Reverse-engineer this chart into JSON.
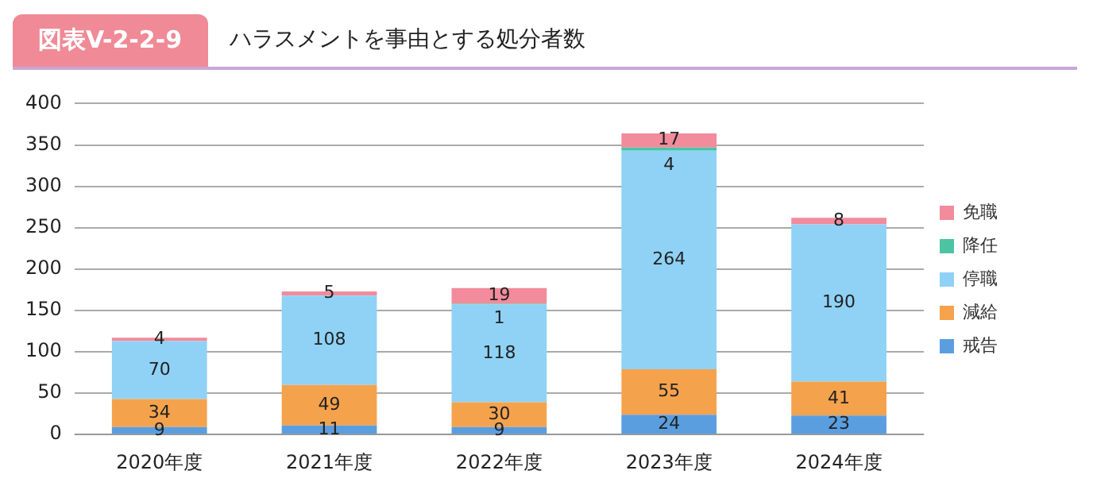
{
  "chart_data": {
    "type": "bar",
    "title": "図表V-2-2-9",
    "subtitle": "ハラスメントを事由とする処分者数",
    "categories": [
      "2020年度",
      "2021年度",
      "2022年度",
      "2023年度",
      "2024年度"
    ],
    "stacked": true,
    "series": [
      {
        "name": "戒告",
        "color": "#5b9ee0",
        "values": [
          9,
          11,
          9,
          24,
          23
        ],
        "value_labels": [
          "9",
          "11",
          "9",
          "24",
          "23"
        ]
      },
      {
        "name": "減給",
        "color": "#f5a24c",
        "values": [
          34,
          49,
          30,
          55,
          41
        ],
        "value_labels": [
          "34",
          "49",
          "30",
          "55",
          "41"
        ]
      },
      {
        "name": "停職",
        "color": "#8fd2f6",
        "values": [
          70,
          108,
          118,
          264,
          190
        ],
        "value_labels": [
          "70",
          "108",
          "118",
          "264",
          "190"
        ]
      },
      {
        "name": "降任",
        "color": "#4cc4a4",
        "values": [
          0,
          0,
          1,
          4,
          0
        ],
        "value_labels": [
          null,
          null,
          "1",
          "4",
          null
        ]
      },
      {
        "name": "免職",
        "color": "#f28b9c",
        "values": [
          4,
          5,
          19,
          17,
          8
        ],
        "value_labels": [
          "4",
          "5",
          "19",
          "17",
          "8"
        ]
      }
    ],
    "ylim": [
      0,
      400
    ],
    "yticks": [
      0,
      50,
      100,
      150,
      200,
      250,
      300,
      350,
      400
    ],
    "grid": "y",
    "legend": "right"
  }
}
